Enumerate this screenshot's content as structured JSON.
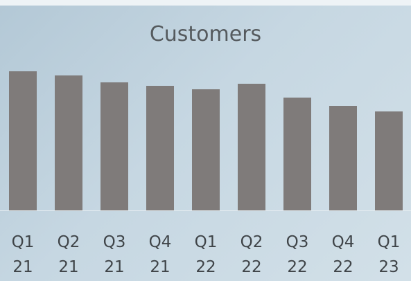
{
  "chart_data": {
    "type": "bar",
    "title": "Customers",
    "categories": [
      "Q1 21",
      "Q2 21",
      "Q3 21",
      "Q4 21",
      "Q1 22",
      "Q2 22",
      "Q3 22",
      "Q4 22",
      "Q1 23"
    ],
    "values": [
      201,
      195,
      185,
      180,
      175,
      183,
      163,
      151,
      143
    ],
    "color": "#7f7b7a",
    "ylim": [
      0,
      220
    ]
  }
}
